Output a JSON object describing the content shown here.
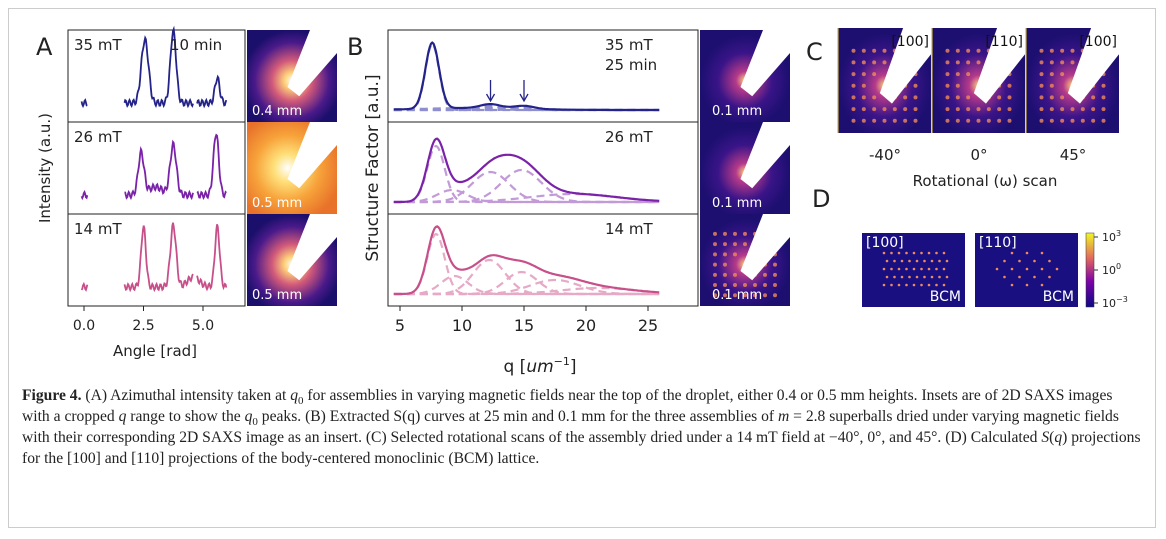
{
  "panels": {
    "A": {
      "label": "A",
      "y_axis_label": "Intensity (a.u.)",
      "x_axis_label": "Angle [rad]",
      "x_ticks": [
        "0.0",
        "2.5",
        "5.0"
      ],
      "rows": [
        {
          "field": "35 mT",
          "time": "10 min",
          "inset_scale": "0.4 mm"
        },
        {
          "field": "26 mT",
          "inset_scale": "0.5 mm"
        },
        {
          "field": "14 mT",
          "inset_scale": "0.5 mm"
        }
      ]
    },
    "B": {
      "label": "B",
      "y_axis_label": "Structure Factor [a.u.]",
      "x_axis_label": {
        "prefix": "q [",
        "unit": "um",
        "exponent": "−1",
        "suffix": "]"
      },
      "x_ticks": [
        "5",
        "10",
        "15",
        "20",
        "25"
      ],
      "rows": [
        {
          "field": "35 mT",
          "time": "25 min",
          "inset_scale": "0.1 mm"
        },
        {
          "field": "26 mT",
          "inset_scale": "0.1 mm"
        },
        {
          "field": "14 mT",
          "inset_scale": "0.1 mm"
        }
      ]
    },
    "C": {
      "label": "C",
      "x_axis_label": "Rotational (ω) scan",
      "images": [
        {
          "direction": "[100]",
          "angle": "-40°"
        },
        {
          "direction": "[110]",
          "angle": "0°"
        },
        {
          "direction": "[100]",
          "angle": "45°"
        }
      ]
    },
    "D": {
      "label": "D",
      "images": [
        {
          "direction": "[100]",
          "lattice": "BCM"
        },
        {
          "direction": "[110]",
          "lattice": "BCM"
        }
      ],
      "colorbar_ticks": [
        {
          "base": "10",
          "exponent": "3"
        },
        {
          "base": "10",
          "exponent": "0"
        },
        {
          "base": "10",
          "exponent": "−3"
        }
      ]
    }
  },
  "caption": {
    "parts": [
      "Figure 4.",
      " (A) Azimuthal intensity taken at ",
      "q",
      "0",
      " for assemblies in varying magnetic fields near the top of the droplet, either 0.4 or 0.5 mm heights. Insets are of 2D SAXS images with a cropped ",
      "q",
      " range to show the ",
      "q",
      "0",
      " peaks. (B) Extracted S(q) curves at 25 min and 0.1 mm for the three assemblies of ",
      "m",
      " = 2.8 superballs dried under varying magnetic fields with their corresponding 2D SAXS image as an insert. (C) Selected rotational scans of the assembly dried under a 14 mT field at −40°, 0°, and 45°. (D) Calculated ",
      "S",
      "(",
      "q",
      ") projections for the [100] and [110] projections of the body-centered monoclinic (BCM) lattice."
    ]
  }
}
